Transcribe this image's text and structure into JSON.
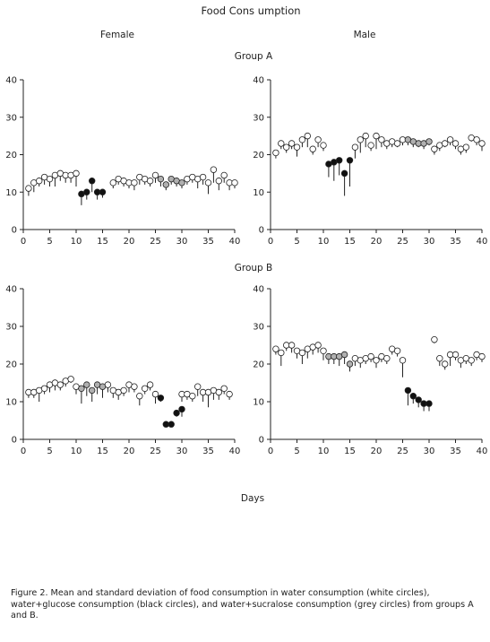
{
  "figure": {
    "title": "Food Cons umption",
    "col_labels": [
      "Female",
      "Male"
    ],
    "group_labels": [
      "Group  A",
      "Group B"
    ],
    "xlabel": "Days",
    "caption": "Figure 2. Mean and standard deviation of food consumption in water consumption (white circles), water+glucose consumption (black circles), and water+sucralose consumption (grey circles) from groups A and B."
  },
  "colors": {
    "water": "#ffffff",
    "glucose": "#111111",
    "sucralose": "#b0b0b0",
    "stroke": "#222222"
  },
  "chart_data": [
    {
      "type": "scatter",
      "panel": "Group A - Female",
      "xlim": [
        0,
        40
      ],
      "ylim": [
        0,
        40
      ],
      "xticks": [
        0,
        5,
        10,
        15,
        20,
        25,
        30,
        35,
        40
      ],
      "yticks": [
        0,
        10,
        20,
        30,
        40
      ],
      "grid": false,
      "series": [
        {
          "name": "water",
          "points": [
            [
              1,
              11,
              2
            ],
            [
              2,
              12.5,
              2.5
            ],
            [
              3,
              13,
              1.5
            ],
            [
              4,
              14,
              2
            ],
            [
              5,
              13.5,
              2
            ],
            [
              6,
              14.5,
              3
            ],
            [
              7,
              15,
              2
            ],
            [
              8,
              14.5,
              2
            ],
            [
              9,
              14.5,
              2
            ],
            [
              10,
              15,
              3.5
            ],
            [
              17,
              12.5,
              1.5
            ],
            [
              18,
              13.5,
              1.5
            ],
            [
              19,
              13,
              1.5
            ],
            [
              20,
              12.5,
              1.5
            ],
            [
              21,
              12.5,
              2
            ],
            [
              22,
              14,
              2
            ],
            [
              23,
              13.5,
              1.5
            ],
            [
              24,
              13,
              1.5
            ],
            [
              25,
              14.5,
              2
            ],
            [
              31,
              13.5,
              1.5
            ],
            [
              32,
              14,
              1.5
            ],
            [
              33,
              13.5,
              2.5
            ],
            [
              34,
              14,
              2
            ],
            [
              35,
              12.5,
              3
            ],
            [
              36,
              16,
              3.5
            ],
            [
              37,
              13,
              2.5
            ],
            [
              38,
              14.5,
              2
            ],
            [
              39,
              12.5,
              2
            ],
            [
              40,
              12.5,
              1.5
            ]
          ]
        },
        {
          "name": "water+glucose",
          "points": [
            [
              11,
              9.5,
              3
            ],
            [
              12,
              10,
              2
            ],
            [
              13,
              13,
              3
            ],
            [
              14,
              10,
              2
            ],
            [
              15,
              10,
              1.5
            ]
          ]
        },
        {
          "name": "water+sucralose",
          "points": [
            [
              26,
              13.5,
              2
            ],
            [
              27,
              12,
              1.5
            ],
            [
              28,
              13.5,
              1.5
            ],
            [
              29,
              13,
              1.5
            ],
            [
              30,
              12.5,
              1.5
            ]
          ]
        }
      ]
    },
    {
      "type": "scatter",
      "panel": "Group A - Male",
      "xlim": [
        0,
        40
      ],
      "ylim": [
        0,
        40
      ],
      "xticks": [
        0,
        5,
        10,
        15,
        20,
        25,
        30,
        35,
        40
      ],
      "yticks": [
        0,
        10,
        20,
        30,
        40
      ],
      "grid": false,
      "series": [
        {
          "name": "water",
          "points": [
            [
              1,
              20.5,
              1.5
            ],
            [
              2,
              23,
              1.5
            ],
            [
              3,
              22,
              1.5
            ],
            [
              4,
              23,
              1.5
            ],
            [
              5,
              22,
              2.5
            ],
            [
              6,
              24,
              2
            ],
            [
              7,
              25,
              3
            ],
            [
              8,
              21.5,
              1.5
            ],
            [
              9,
              24,
              2
            ],
            [
              10,
              22.5,
              1.5
            ],
            [
              16,
              22,
              3
            ],
            [
              17,
              24,
              3.5
            ],
            [
              18,
              25,
              3
            ],
            [
              19,
              22.5,
              1.5
            ],
            [
              20,
              25,
              3.5
            ],
            [
              21,
              24,
              2
            ],
            [
              22,
              23,
              1.5
            ],
            [
              23,
              23.5,
              1.5
            ],
            [
              24,
              23,
              1
            ],
            [
              25,
              24,
              1.5
            ],
            [
              31,
              21.5,
              1.5
            ],
            [
              32,
              22.5,
              1.5
            ],
            [
              33,
              23,
              1
            ],
            [
              34,
              24,
              1.5
            ],
            [
              35,
              23,
              1.5
            ],
            [
              36,
              21.5,
              1.5
            ],
            [
              37,
              22,
              1.5
            ],
            [
              38,
              24.5,
              1
            ],
            [
              39,
              24,
              1.5
            ],
            [
              40,
              23,
              2
            ]
          ]
        },
        {
          "name": "water+glucose",
          "points": [
            [
              11,
              17.5,
              3.5
            ],
            [
              12,
              18,
              5
            ],
            [
              13,
              18.5,
              4
            ],
            [
              14,
              15,
              6
            ],
            [
              15,
              18.5,
              7
            ]
          ]
        },
        {
          "name": "water+sucralose",
          "points": [
            [
              26,
              24,
              1.5
            ],
            [
              27,
              23.5,
              1.5
            ],
            [
              28,
              23,
              1
            ],
            [
              29,
              23,
              1.5
            ],
            [
              30,
              23.5,
              1
            ]
          ]
        }
      ]
    },
    {
      "type": "scatter",
      "panel": "Group B - Female",
      "xlim": [
        0,
        40
      ],
      "ylim": [
        0,
        40
      ],
      "xticks": [
        0,
        5,
        10,
        15,
        20,
        25,
        30,
        35,
        40
      ],
      "yticks": [
        0,
        10,
        20,
        30,
        40
      ],
      "grid": false,
      "series": [
        {
          "name": "water",
          "points": [
            [
              1,
              12.5,
              1.5
            ],
            [
              2,
              12.5,
              1.5
            ],
            [
              3,
              13,
              3
            ],
            [
              4,
              13.5,
              1.5
            ],
            [
              5,
              14.5,
              2
            ],
            [
              6,
              15,
              2
            ],
            [
              7,
              14.5,
              1.5
            ],
            [
              8,
              15.5,
              1.5
            ],
            [
              9,
              16,
              1
            ],
            [
              10,
              14,
              2
            ],
            [
              16,
              14.5,
              2
            ],
            [
              17,
              13,
              2
            ],
            [
              18,
              12.5,
              2
            ],
            [
              19,
              13,
              1.5
            ],
            [
              20,
              14.5,
              2
            ],
            [
              21,
              14,
              1.5
            ],
            [
              22,
              11.5,
              2.5
            ],
            [
              23,
              13.5,
              1.5
            ],
            [
              24,
              14.5,
              1.5
            ],
            [
              25,
              12,
              2.5
            ],
            [
              30,
              12,
              2
            ],
            [
              31,
              12,
              1.5
            ],
            [
              32,
              11.5,
              1.5
            ],
            [
              33,
              14,
              2.5
            ],
            [
              34,
              12.5,
              2.5
            ],
            [
              35,
              12.5,
              4
            ],
            [
              36,
              13,
              2.5
            ],
            [
              37,
              12.5,
              2
            ],
            [
              38,
              13.5,
              1.5
            ],
            [
              39,
              12,
              1.5
            ]
          ]
        },
        {
          "name": "water+glucose",
          "points": [
            [
              26,
              11,
              1
            ],
            [
              27,
              4,
              0.5
            ],
            [
              28,
              4,
              0.5
            ],
            [
              29,
              7,
              1
            ],
            [
              30,
              8,
              2
            ]
          ]
        },
        {
          "name": "water+sucralose",
          "points": [
            [
              11,
              13.5,
              4
            ],
            [
              12,
              14.5,
              3
            ],
            [
              13,
              13,
              3
            ],
            [
              14,
              14.5,
              2.5
            ],
            [
              15,
              14,
              3
            ]
          ]
        }
      ]
    },
    {
      "type": "scatter",
      "panel": "Group B - Male",
      "xlim": [
        0,
        40
      ],
      "ylim": [
        0,
        40
      ],
      "xticks": [
        0,
        5,
        10,
        15,
        20,
        25,
        30,
        35,
        40
      ],
      "yticks": [
        0,
        10,
        20,
        30,
        40
      ],
      "grid": false,
      "series": [
        {
          "name": "water",
          "points": [
            [
              1,
              24,
              1.5
            ],
            [
              2,
              23,
              3.5
            ],
            [
              3,
              25,
              1.5
            ],
            [
              4,
              25,
              2
            ],
            [
              5,
              23.5,
              2
            ],
            [
              6,
              23,
              3
            ],
            [
              7,
              24,
              2.5
            ],
            [
              8,
              24.5,
              2
            ],
            [
              9,
              25,
              2
            ],
            [
              10,
              23.5,
              2.5
            ],
            [
              16,
              21.5,
              2
            ],
            [
              17,
              21,
              2
            ],
            [
              18,
              21.5,
              1.5
            ],
            [
              19,
              22,
              1.5
            ],
            [
              20,
              21,
              2
            ],
            [
              21,
              22,
              1.5
            ],
            [
              22,
              21.5,
              1.5
            ],
            [
              23,
              24,
              1.5
            ],
            [
              24,
              23.5,
              1.5
            ],
            [
              25,
              21,
              4.5
            ],
            [
              31,
              26.5,
              1
            ],
            [
              32,
              21.5,
              2
            ],
            [
              33,
              20,
              1.5
            ],
            [
              34,
              22.5,
              3
            ],
            [
              35,
              22.5,
              1.5
            ],
            [
              36,
              21,
              2
            ],
            [
              37,
              21.5,
              1.5
            ],
            [
              38,
              21,
              1.5
            ],
            [
              39,
              22.5,
              1.5
            ],
            [
              40,
              22,
              1.5
            ]
          ]
        },
        {
          "name": "water+glucose",
          "points": [
            [
              26,
              13,
              4
            ],
            [
              27,
              11.5,
              2
            ],
            [
              28,
              10.5,
              2
            ],
            [
              29,
              9.5,
              2
            ],
            [
              30,
              9.5,
              2
            ]
          ]
        },
        {
          "name": "water+sucralose",
          "points": [
            [
              11,
              22,
              2
            ],
            [
              12,
              22,
              2
            ],
            [
              13,
              22,
              2.5
            ],
            [
              14,
              22.5,
              2.5
            ],
            [
              15,
              20,
              2
            ]
          ]
        }
      ]
    }
  ]
}
